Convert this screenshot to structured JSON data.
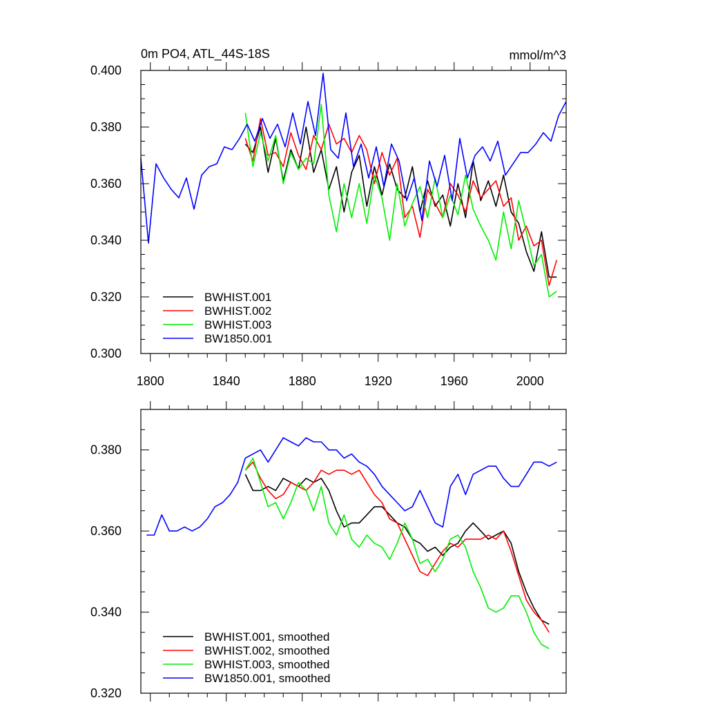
{
  "chart_data": [
    {
      "type": "line",
      "title": "0m PO4, ATL_44S-18S",
      "units": "mmol/m^3",
      "xlim": [
        1795,
        2019
      ],
      "ylim": [
        0.3,
        0.4
      ],
      "xticks": [
        1800,
        1840,
        1880,
        1920,
        1960,
        2000
      ],
      "xtick_labels": [
        "1800",
        "1840",
        "1880",
        "1920",
        "1960",
        "2000"
      ],
      "yticks": [
        0.3,
        0.32,
        0.34,
        0.36,
        0.38,
        0.4
      ],
      "ytick_labels": [
        "0.300",
        "0.320",
        "0.340",
        "0.360",
        "0.380",
        "0.400"
      ],
      "legend_position": "bottom-left",
      "series": [
        {
          "name": "BWHIST.001",
          "color": "#000000",
          "x": [
            1850,
            1854,
            1858,
            1862,
            1866,
            1870,
            1874,
            1878,
            1882,
            1886,
            1890,
            1894,
            1898,
            1902,
            1906,
            1910,
            1914,
            1918,
            1922,
            1926,
            1930,
            1934,
            1938,
            1942,
            1946,
            1950,
            1954,
            1958,
            1962,
            1966,
            1970,
            1974,
            1978,
            1982,
            1986,
            1990,
            1994,
            1998,
            2002,
            2006,
            2010,
            2014
          ],
          "y": [
            0.374,
            0.371,
            0.38,
            0.364,
            0.376,
            0.361,
            0.372,
            0.365,
            0.38,
            0.364,
            0.372,
            0.358,
            0.366,
            0.35,
            0.364,
            0.37,
            0.352,
            0.366,
            0.356,
            0.367,
            0.358,
            0.355,
            0.366,
            0.35,
            0.361,
            0.352,
            0.356,
            0.345,
            0.36,
            0.348,
            0.368,
            0.354,
            0.361,
            0.352,
            0.363,
            0.35,
            0.346,
            0.336,
            0.329,
            0.343,
            0.327,
            0.327
          ]
        },
        {
          "name": "BWHIST.002",
          "color": "#ff0000",
          "x": [
            1850,
            1854,
            1858,
            1862,
            1866,
            1870,
            1874,
            1878,
            1882,
            1886,
            1890,
            1894,
            1898,
            1902,
            1906,
            1910,
            1914,
            1918,
            1922,
            1926,
            1930,
            1934,
            1938,
            1942,
            1946,
            1950,
            1954,
            1958,
            1962,
            1966,
            1970,
            1974,
            1978,
            1982,
            1986,
            1990,
            1994,
            1998,
            2002,
            2006,
            2010,
            2014
          ],
          "y": [
            0.376,
            0.368,
            0.383,
            0.37,
            0.371,
            0.366,
            0.378,
            0.37,
            0.365,
            0.377,
            0.372,
            0.381,
            0.374,
            0.376,
            0.371,
            0.377,
            0.372,
            0.36,
            0.371,
            0.363,
            0.369,
            0.348,
            0.352,
            0.341,
            0.358,
            0.353,
            0.348,
            0.36,
            0.356,
            0.35,
            0.361,
            0.355,
            0.358,
            0.361,
            0.352,
            0.355,
            0.34,
            0.345,
            0.338,
            0.34,
            0.324,
            0.333
          ]
        },
        {
          "name": "BWHIST.003",
          "color": "#00ee00",
          "x": [
            1850,
            1854,
            1858,
            1862,
            1866,
            1870,
            1874,
            1878,
            1882,
            1886,
            1890,
            1894,
            1898,
            1902,
            1906,
            1910,
            1914,
            1918,
            1922,
            1926,
            1930,
            1934,
            1938,
            1942,
            1946,
            1950,
            1954,
            1958,
            1962,
            1966,
            1970,
            1974,
            1978,
            1982,
            1986,
            1990,
            1994,
            1998,
            2002,
            2006,
            2010,
            2014
          ],
          "y": [
            0.385,
            0.366,
            0.378,
            0.368,
            0.377,
            0.36,
            0.371,
            0.365,
            0.369,
            0.367,
            0.388,
            0.356,
            0.343,
            0.36,
            0.348,
            0.36,
            0.346,
            0.363,
            0.355,
            0.34,
            0.36,
            0.345,
            0.353,
            0.359,
            0.348,
            0.362,
            0.348,
            0.356,
            0.349,
            0.363,
            0.351,
            0.345,
            0.34,
            0.333,
            0.35,
            0.337,
            0.354,
            0.343,
            0.331,
            0.335,
            0.32,
            0.322
          ]
        },
        {
          "name": "BW1850.001",
          "color": "#0000ff",
          "x": [
            1795,
            1799,
            1803,
            1807,
            1811,
            1815,
            1819,
            1823,
            1827,
            1831,
            1835,
            1839,
            1843,
            1847,
            1851,
            1855,
            1859,
            1863,
            1867,
            1871,
            1875,
            1879,
            1883,
            1887,
            1891,
            1895,
            1899,
            1903,
            1907,
            1911,
            1915,
            1919,
            1923,
            1927,
            1931,
            1935,
            1939,
            1943,
            1947,
            1951,
            1955,
            1959,
            1963,
            1967,
            1971,
            1975,
            1979,
            1983,
            1987,
            1991,
            1995,
            1999,
            2003,
            2007,
            2011,
            2015,
            2019
          ],
          "y": [
            0.369,
            0.339,
            0.367,
            0.362,
            0.358,
            0.355,
            0.362,
            0.351,
            0.363,
            0.366,
            0.367,
            0.373,
            0.372,
            0.376,
            0.381,
            0.375,
            0.383,
            0.376,
            0.381,
            0.373,
            0.385,
            0.374,
            0.389,
            0.377,
            0.399,
            0.372,
            0.369,
            0.385,
            0.366,
            0.374,
            0.362,
            0.373,
            0.359,
            0.374,
            0.368,
            0.354,
            0.362,
            0.347,
            0.368,
            0.359,
            0.37,
            0.354,
            0.376,
            0.362,
            0.37,
            0.373,
            0.368,
            0.375,
            0.363,
            0.367,
            0.371,
            0.371,
            0.374,
            0.378,
            0.375,
            0.384,
            0.389
          ]
        }
      ]
    },
    {
      "type": "line",
      "xlim": [
        1795,
        2019
      ],
      "ylim": [
        0.32,
        0.39
      ],
      "yticks": [
        0.32,
        0.34,
        0.36,
        0.38
      ],
      "ytick_labels": [
        "0.320",
        "0.340",
        "0.360",
        "0.380"
      ],
      "legend_position": "bottom-left",
      "series": [
        {
          "name": "BWHIST.001, smoothed",
          "color": "#000000",
          "x": [
            1850,
            1854,
            1858,
            1862,
            1866,
            1870,
            1874,
            1878,
            1882,
            1886,
            1890,
            1894,
            1898,
            1902,
            1906,
            1910,
            1914,
            1918,
            1922,
            1926,
            1930,
            1934,
            1938,
            1942,
            1946,
            1950,
            1954,
            1958,
            1962,
            1966,
            1970,
            1974,
            1978,
            1982,
            1986,
            1990,
            1994,
            1998,
            2002,
            2006,
            2010
          ],
          "y": [
            0.374,
            0.37,
            0.37,
            0.371,
            0.37,
            0.373,
            0.372,
            0.371,
            0.373,
            0.372,
            0.373,
            0.37,
            0.365,
            0.361,
            0.362,
            0.362,
            0.364,
            0.366,
            0.366,
            0.364,
            0.362,
            0.361,
            0.358,
            0.357,
            0.355,
            0.356,
            0.354,
            0.356,
            0.357,
            0.36,
            0.362,
            0.36,
            0.358,
            0.359,
            0.36,
            0.357,
            0.35,
            0.345,
            0.341,
            0.338,
            0.337
          ]
        },
        {
          "name": "BWHIST.002, smoothed",
          "color": "#ff0000",
          "x": [
            1850,
            1854,
            1858,
            1862,
            1866,
            1870,
            1874,
            1878,
            1882,
            1886,
            1890,
            1894,
            1898,
            1902,
            1906,
            1910,
            1914,
            1918,
            1922,
            1926,
            1930,
            1934,
            1938,
            1942,
            1946,
            1950,
            1954,
            1958,
            1962,
            1966,
            1970,
            1974,
            1978,
            1982,
            1986,
            1990,
            1994,
            1998,
            2002,
            2006,
            2010
          ],
          "y": [
            0.375,
            0.377,
            0.373,
            0.37,
            0.368,
            0.369,
            0.372,
            0.371,
            0.37,
            0.372,
            0.375,
            0.374,
            0.375,
            0.375,
            0.374,
            0.375,
            0.372,
            0.369,
            0.367,
            0.363,
            0.362,
            0.358,
            0.354,
            0.35,
            0.349,
            0.352,
            0.355,
            0.357,
            0.356,
            0.358,
            0.358,
            0.358,
            0.359,
            0.358,
            0.36,
            0.355,
            0.349,
            0.343,
            0.34,
            0.338,
            0.335
          ]
        },
        {
          "name": "BWHIST.003, smoothed",
          "color": "#00ee00",
          "x": [
            1850,
            1854,
            1858,
            1862,
            1866,
            1870,
            1874,
            1878,
            1882,
            1886,
            1890,
            1894,
            1898,
            1902,
            1906,
            1910,
            1914,
            1918,
            1922,
            1926,
            1930,
            1934,
            1938,
            1942,
            1946,
            1950,
            1954,
            1958,
            1962,
            1966,
            1970,
            1974,
            1978,
            1982,
            1986,
            1990,
            1994,
            1998,
            2002,
            2006,
            2010
          ],
          "y": [
            0.375,
            0.378,
            0.372,
            0.366,
            0.367,
            0.363,
            0.367,
            0.372,
            0.37,
            0.365,
            0.371,
            0.362,
            0.359,
            0.364,
            0.358,
            0.356,
            0.359,
            0.357,
            0.356,
            0.353,
            0.357,
            0.362,
            0.358,
            0.352,
            0.353,
            0.35,
            0.353,
            0.358,
            0.359,
            0.356,
            0.35,
            0.346,
            0.341,
            0.34,
            0.341,
            0.344,
            0.344,
            0.34,
            0.335,
            0.332,
            0.331
          ]
        },
        {
          "name": "BW1850.001, smoothed",
          "color": "#0000ff",
          "x": [
            1798,
            1802,
            1806,
            1810,
            1814,
            1818,
            1822,
            1826,
            1830,
            1834,
            1838,
            1842,
            1846,
            1850,
            1854,
            1858,
            1862,
            1866,
            1870,
            1874,
            1878,
            1882,
            1886,
            1890,
            1894,
            1898,
            1902,
            1906,
            1910,
            1914,
            1918,
            1922,
            1926,
            1930,
            1934,
            1938,
            1942,
            1946,
            1950,
            1954,
            1958,
            1962,
            1966,
            1970,
            1974,
            1978,
            1982,
            1986,
            1990,
            1994,
            1998,
            2002,
            2006,
            2010,
            2014
          ],
          "y": [
            0.359,
            0.359,
            0.364,
            0.36,
            0.36,
            0.361,
            0.36,
            0.361,
            0.363,
            0.366,
            0.367,
            0.369,
            0.372,
            0.378,
            0.379,
            0.38,
            0.377,
            0.38,
            0.383,
            0.382,
            0.381,
            0.383,
            0.382,
            0.382,
            0.38,
            0.38,
            0.378,
            0.379,
            0.377,
            0.376,
            0.374,
            0.371,
            0.369,
            0.367,
            0.365,
            0.366,
            0.37,
            0.366,
            0.362,
            0.361,
            0.371,
            0.374,
            0.369,
            0.374,
            0.375,
            0.376,
            0.376,
            0.373,
            0.371,
            0.371,
            0.374,
            0.377,
            0.377,
            0.376,
            0.377
          ]
        }
      ]
    }
  ]
}
